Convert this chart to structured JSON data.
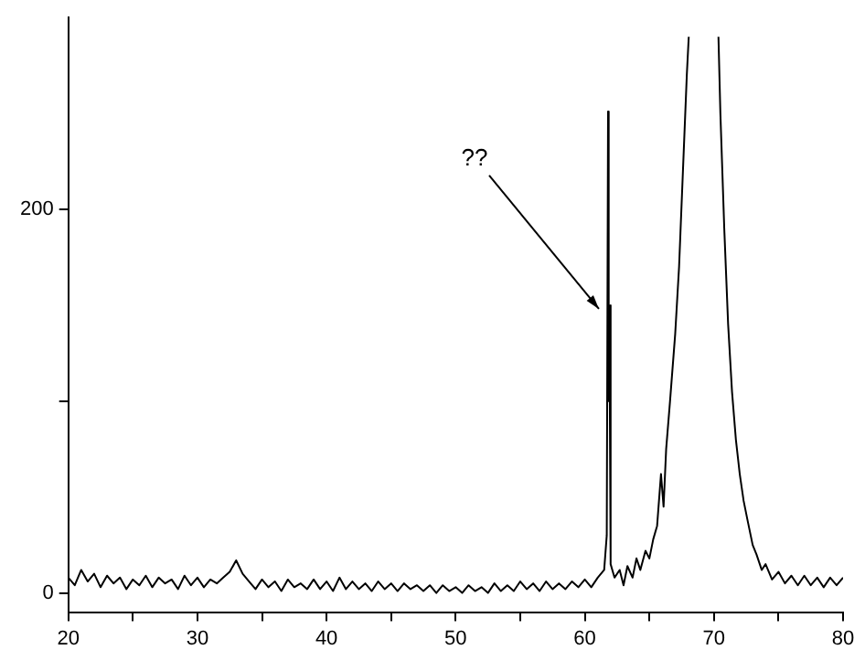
{
  "chart_data": {
    "type": "line",
    "x": [
      20,
      20.5,
      21,
      21.5,
      22,
      22.5,
      23,
      23.5,
      24,
      24.5,
      25,
      25.5,
      26,
      26.5,
      27,
      27.5,
      28,
      28.5,
      29,
      29.5,
      30,
      30.5,
      31,
      31.5,
      32,
      32.5,
      33,
      33.5,
      34,
      34.5,
      35,
      35.5,
      36,
      36.5,
      37,
      37.5,
      38,
      38.5,
      39,
      39.5,
      40,
      40.5,
      41,
      41.5,
      42,
      42.5,
      43,
      43.5,
      44,
      44.5,
      45,
      45.5,
      46,
      46.5,
      47,
      47.5,
      48,
      48.5,
      49,
      49.5,
      50,
      50.5,
      51,
      51.5,
      52,
      52.5,
      53,
      53.5,
      54,
      54.5,
      55,
      55.5,
      56,
      56.5,
      57,
      57.5,
      58,
      58.5,
      59,
      59.5,
      60,
      60.5,
      61,
      61.5,
      61.7,
      61.8,
      61.85,
      61.9,
      62,
      62.3,
      62.7,
      63,
      63.3,
      63.7,
      64,
      64.3,
      64.7,
      65,
      65.3,
      65.6,
      65.9,
      66.1,
      66.3,
      66.6,
      67,
      67.3,
      67.6,
      67.9,
      68.05,
      69.2,
      70.35,
      70.5,
      70.8,
      71.1,
      71.4,
      71.7,
      72,
      72.3,
      72.6,
      73,
      73.3,
      73.7,
      74,
      74.5,
      75,
      75.5,
      76,
      76.5,
      77,
      77.5,
      78,
      78.5,
      79,
      79.5,
      80
    ],
    "series": [
      {
        "color": "#000000",
        "values": [
          8,
          4,
          12,
          6,
          10,
          3,
          9,
          5,
          8,
          2,
          7,
          4,
          9,
          3,
          8,
          5,
          7,
          2,
          9,
          4,
          8,
          3,
          7,
          5,
          8,
          11,
          17,
          10,
          6,
          2,
          7,
          3,
          6,
          1,
          7,
          3,
          5,
          2,
          7,
          2,
          6,
          1,
          8,
          2,
          6,
          2,
          5,
          1,
          6,
          2,
          5,
          1,
          5,
          2,
          4,
          1,
          4,
          0,
          4,
          1,
          3,
          0,
          4,
          1,
          3,
          0,
          5,
          1,
          4,
          1,
          6,
          2,
          5,
          1,
          6,
          2,
          5,
          2,
          6,
          3,
          7,
          3,
          8,
          12,
          30,
          251,
          100,
          150,
          15,
          8,
          12,
          4,
          14,
          8,
          18,
          12,
          22,
          18,
          28,
          35,
          62,
          45,
          75,
          100,
          135,
          170,
          220,
          270,
          290,
          null,
          290,
          250,
          190,
          140,
          105,
          80,
          62,
          48,
          38,
          25,
          20,
          12,
          15,
          7,
          11,
          5,
          9,
          4,
          9,
          4,
          8,
          3,
          8,
          4,
          8
        ]
      }
    ],
    "xlim": [
      20,
      80
    ],
    "ylim": [
      -10,
      300
    ],
    "xticks": [
      20,
      {
        "value": 25,
        "label": null
      },
      30,
      {
        "value": 35,
        "label": null
      },
      40,
      {
        "value": 45,
        "label": null
      },
      50,
      {
        "value": 55,
        "label": null
      },
      60,
      {
        "value": 65,
        "label": null
      },
      70,
      {
        "value": 75,
        "label": null
      },
      80
    ],
    "yticks": [
      0,
      {
        "value": 100,
        "label": null
      },
      200
    ],
    "annotations": [
      {
        "text": "??",
        "x": 61.8,
        "y": 150
      }
    ]
  }
}
